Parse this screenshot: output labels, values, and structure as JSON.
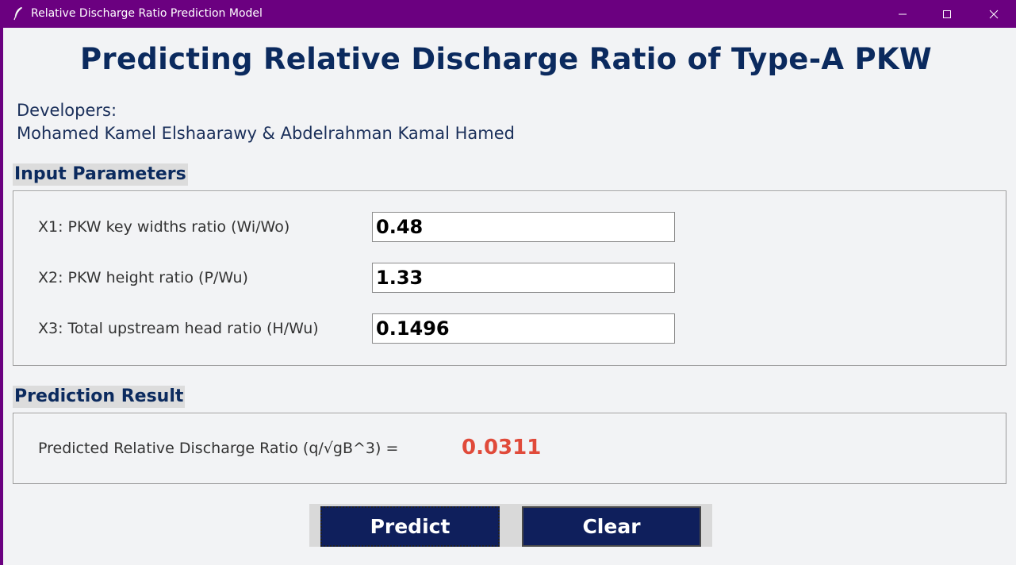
{
  "window": {
    "title": "Relative Discharge Ratio Prediction Model",
    "controls": [
      "minimize",
      "maximize",
      "close"
    ]
  },
  "header": {
    "title": "Predicting Relative Discharge Ratio of Type-A PKW",
    "developers_label": "Developers:",
    "developers_names": "Mohamed Kamel Elshaarawy & Abdelrahman Kamal Hamed"
  },
  "inputs": {
    "section_title": "Input Parameters",
    "params": [
      {
        "label": "X1: PKW key widths ratio (Wi/Wo)",
        "value": "0.48"
      },
      {
        "label": "X2: PKW height ratio (P/Wu)",
        "value": "1.33"
      },
      {
        "label": "X3: Total upstream head ratio (H/Wu)",
        "value": "0.1496"
      }
    ]
  },
  "result": {
    "section_title": "Prediction Result",
    "label": "Predicted Relative Discharge Ratio (q/√gB^3) =",
    "value": "0.0311"
  },
  "buttons": {
    "predict": "Predict",
    "clear": "Clear"
  },
  "colors": {
    "titlebar": "#6b0080",
    "heading": "#0b2a5e",
    "button_bg": "#0f1f5c",
    "result_value": "#e04a3a"
  },
  "icons": {
    "app": "feather-icon",
    "minimize": "minimize-icon",
    "maximize": "maximize-icon",
    "close": "close-icon"
  }
}
